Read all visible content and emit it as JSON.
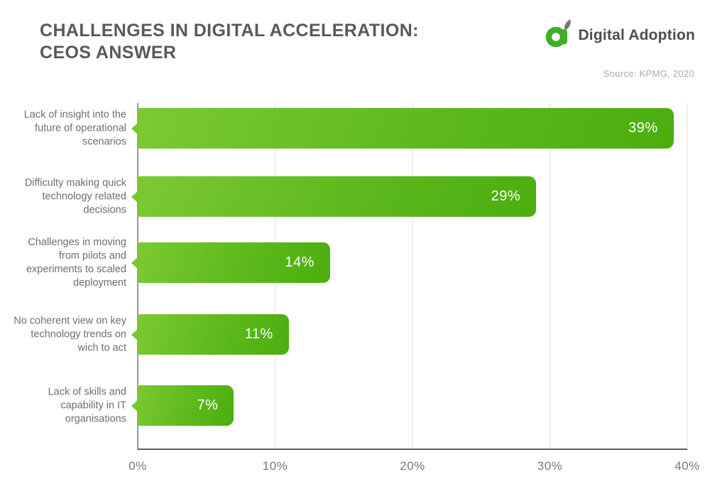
{
  "header": {
    "title_line1": "CHALLENGES IN DIGITAL ACCELERATION:",
    "title_line2": "CEOS ANSWER",
    "brand_name": "Digital Adoption",
    "source": "Source: KPMG, 2020"
  },
  "colors": {
    "bar_gradient_start": "#7CC933",
    "bar_gradient_end": "#4CAE0E",
    "brand_green": "#3FAE29",
    "title_text": "#58595B",
    "category_text": "#6D6E71",
    "tick_text": "#77787B",
    "source_text": "#A7A9AC",
    "gridline": "#DBDCDD",
    "axis_line": "#97999C",
    "baseline": "#5B5C5E",
    "value_text": "#FFFFFF"
  },
  "chart_data": {
    "type": "bar",
    "orientation": "horizontal",
    "title": "CHALLENGES IN DIGITAL ACCELERATION: CEOS ANSWER",
    "source": "KPMG, 2020",
    "categories": [
      "Lack of insight into the future of operational scenarios",
      "Difficulty making quick technology related decisions",
      "Challenges in moving from pilots and experiments to scaled deployment",
      "No coherent view on key technology trends on wich to act",
      "Lack of skills and capability in IT organisations"
    ],
    "values": [
      39,
      29,
      14,
      11,
      7
    ],
    "value_labels": [
      "39%",
      "29%",
      "14%",
      "11%",
      "7%"
    ],
    "x_ticks": [
      "0%",
      "10%",
      "20%",
      "30%",
      "40%"
    ],
    "xlim": [
      0,
      40
    ],
    "grid": "vertical gridlines on",
    "legend": "none",
    "xlabel": "",
    "ylabel": ""
  }
}
